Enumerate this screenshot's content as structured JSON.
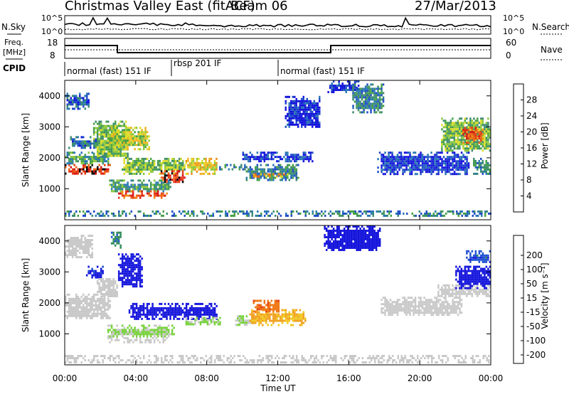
{
  "header": {
    "station": "Christmas Valley East (fitACF)",
    "beam": "Beam 06",
    "date": "27/Mar/2013"
  },
  "summary_panels": {
    "nsky_label": "N.Sky",
    "nsearch_label": "N.Search",
    "noise_ticks": [
      "10^5",
      "10^0"
    ],
    "freq_label": "Freq.",
    "freq_unit": "[MHz]",
    "freq_ticks": [
      "18",
      "8"
    ],
    "nave_label": "Nave",
    "nave_ticks": [
      "60",
      "0"
    ],
    "cpid_label": "CPID",
    "cpid_segments": [
      {
        "label": "normal (fast) 151 IF",
        "start": 0,
        "end": 6
      },
      {
        "label": "rbsp 201 IF",
        "start": 6,
        "end": 12
      },
      {
        "label": "normal (fast) 151 IF",
        "start": 12,
        "end": 24
      }
    ]
  },
  "chart_data": [
    {
      "type": "heatmap",
      "name": "power",
      "xlabel": "Time UT",
      "ylabel": "Slant Range [km]",
      "xlim": [
        0,
        24
      ],
      "ylim": [
        0,
        4500
      ],
      "x_ticks": [
        "00:00",
        "04:00",
        "08:00",
        "12:00",
        "16:00",
        "20:00",
        "00:00"
      ],
      "y_ticks": [
        1000,
        2000,
        3000,
        4000
      ],
      "colorbar": {
        "label": "Power [dB]",
        "ticks": [
          4,
          8,
          12,
          16,
          20,
          24,
          28
        ],
        "colors": [
          "#1414dc",
          "#1e4cc8",
          "#2a78b4",
          "#3c8c6e",
          "#46a046",
          "#8cc83c",
          "#dcdc28",
          "#f0b41e",
          "#f08c14",
          "#f06414",
          "#e63c14",
          "#d71414"
        ]
      },
      "regions": [
        {
          "t0": 0.0,
          "t1": 2.6,
          "r0": 1500,
          "r1": 1800,
          "v": 26
        },
        {
          "t0": 0.0,
          "t1": 2.6,
          "r0": 1800,
          "r1": 2200,
          "v": 12
        },
        {
          "t0": 0.2,
          "t1": 1.8,
          "r0": 2300,
          "r1": 2700,
          "v": 9
        },
        {
          "t0": 0.0,
          "t1": 1.4,
          "r0": 3600,
          "r1": 4100,
          "v": 8
        },
        {
          "t0": 1.6,
          "t1": 3.6,
          "r0": 2000,
          "r1": 3200,
          "v": 14
        },
        {
          "t0": 2.4,
          "t1": 4.8,
          "r0": 2300,
          "r1": 3000,
          "v": 16
        },
        {
          "t0": 2.4,
          "t1": 6.0,
          "r0": 900,
          "r1": 1300,
          "v": 12
        },
        {
          "t0": 3.0,
          "t1": 5.8,
          "r0": 700,
          "r1": 950,
          "v": 24
        },
        {
          "t0": 3.2,
          "t1": 6.8,
          "r0": 1500,
          "r1": 2000,
          "v": 14
        },
        {
          "t0": 5.4,
          "t1": 6.8,
          "r0": 1200,
          "r1": 1600,
          "v": 26
        },
        {
          "t0": 6.8,
          "t1": 8.6,
          "r0": 1500,
          "r1": 2000,
          "v": 18
        },
        {
          "t0": 8.6,
          "t1": 10.2,
          "r0": 1600,
          "r1": 1800,
          "v": 10
        },
        {
          "t0": 10.2,
          "t1": 13.2,
          "r0": 1300,
          "r1": 1800,
          "v": 10
        },
        {
          "t0": 10.6,
          "t1": 12.6,
          "r0": 1400,
          "r1": 1500,
          "v": 20
        },
        {
          "t0": 10.0,
          "t1": 14.0,
          "r0": 1900,
          "r1": 2200,
          "v": 6
        },
        {
          "t0": 12.4,
          "t1": 14.4,
          "r0": 3000,
          "r1": 4000,
          "v": 5
        },
        {
          "t0": 14.8,
          "t1": 16.6,
          "r0": 4100,
          "r1": 4500,
          "v": 6
        },
        {
          "t0": 16.2,
          "t1": 18.0,
          "r0": 3500,
          "r1": 4400,
          "v": 10
        },
        {
          "t0": 17.6,
          "t1": 22.8,
          "r0": 1500,
          "r1": 2200,
          "v": 6
        },
        {
          "t0": 21.2,
          "t1": 24.0,
          "r0": 2200,
          "r1": 3300,
          "v": 14
        },
        {
          "t0": 22.4,
          "t1": 23.6,
          "r0": 2500,
          "r1": 3000,
          "v": 24
        },
        {
          "t0": 23.0,
          "t1": 24.0,
          "r0": 1500,
          "r1": 2000,
          "v": 10
        },
        {
          "t0": 0.0,
          "t1": 24.0,
          "r0": 100,
          "r1": 300,
          "v": 10
        }
      ]
    },
    {
      "type": "heatmap",
      "name": "velocity",
      "xlabel": "Time UT",
      "ylabel": "Slant Range [km]",
      "xlim": [
        0,
        24
      ],
      "ylim": [
        0,
        4500
      ],
      "x_ticks": [
        "00:00",
        "04:00",
        "08:00",
        "12:00",
        "16:00",
        "20:00",
        "00:00"
      ],
      "y_ticks": [
        1000,
        2000,
        3000,
        4000
      ],
      "colorbar": {
        "label": "Velocity [m s⁻¹]",
        "ticks": [
          200,
          100,
          50,
          15,
          -15,
          -50,
          -100,
          -200
        ],
        "colors": [
          "#1414dc",
          "#1e50d2",
          "#2e8b57",
          "#46b432",
          "#78d23c",
          "#c8c8c8",
          "#c8c8c8",
          "#f0c81e",
          "#f0a01e",
          "#f07814",
          "#e64614",
          "#d21414"
        ]
      },
      "regions": [
        {
          "t0": 0.0,
          "t1": 2.6,
          "r0": 1500,
          "r1": 2300,
          "v": 0
        },
        {
          "t0": 0.0,
          "t1": 1.6,
          "r0": 3500,
          "r1": 4200,
          "v": 0
        },
        {
          "t0": 1.2,
          "t1": 2.2,
          "r0": 2800,
          "r1": 3200,
          "v": 180
        },
        {
          "t0": 1.8,
          "t1": 3.0,
          "r0": 2200,
          "r1": 2800,
          "v": 0
        },
        {
          "t0": 2.6,
          "t1": 3.2,
          "r0": 3800,
          "r1": 4300,
          "v": 120
        },
        {
          "t0": 3.0,
          "t1": 4.4,
          "r0": 2500,
          "r1": 3600,
          "v": 200
        },
        {
          "t0": 2.4,
          "t1": 5.8,
          "r0": 700,
          "r1": 900,
          "v": 0
        },
        {
          "t0": 2.4,
          "t1": 6.2,
          "r0": 900,
          "r1": 1300,
          "v": 40
        },
        {
          "t0": 3.6,
          "t1": 8.6,
          "r0": 1500,
          "r1": 2000,
          "v": 200
        },
        {
          "t0": 6.8,
          "t1": 8.8,
          "r0": 1300,
          "r1": 1550,
          "v": 40
        },
        {
          "t0": 9.6,
          "t1": 10.6,
          "r0": 1300,
          "r1": 1600,
          "v": 30
        },
        {
          "t0": 10.4,
          "t1": 13.6,
          "r0": 1300,
          "r1": 1800,
          "v": -70
        },
        {
          "t0": 10.6,
          "t1": 12.2,
          "r0": 1700,
          "r1": 2100,
          "v": -120
        },
        {
          "t0": 14.6,
          "t1": 17.8,
          "r0": 3700,
          "r1": 4500,
          "v": 200
        },
        {
          "t0": 17.8,
          "t1": 22.4,
          "r0": 1600,
          "r1": 2200,
          "v": 0
        },
        {
          "t0": 21.0,
          "t1": 24.0,
          "r0": 2200,
          "r1": 2600,
          "v": 0
        },
        {
          "t0": 22.0,
          "t1": 24.0,
          "r0": 2500,
          "r1": 3200,
          "v": 200
        },
        {
          "t0": 22.6,
          "t1": 24.0,
          "r0": 3300,
          "r1": 3700,
          "v": 150
        },
        {
          "t0": 0.0,
          "t1": 24.0,
          "r0": 100,
          "r1": 320,
          "v": 10
        }
      ]
    }
  ]
}
